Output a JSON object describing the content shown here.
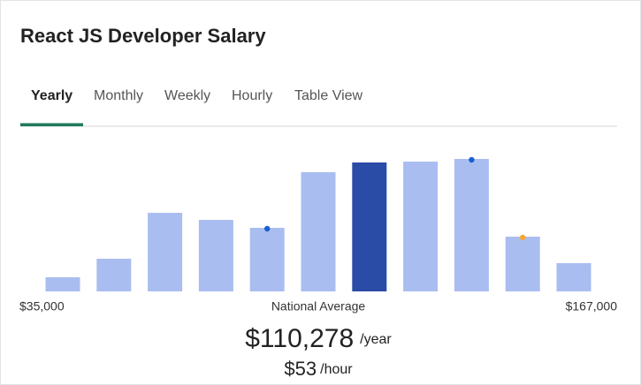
{
  "title": "React JS Developer Salary",
  "tabs": [
    "Yearly",
    "Monthly",
    "Weekly",
    "Hourly",
    "Table View"
  ],
  "active_tab": 0,
  "chart_data": {
    "type": "bar",
    "values": [
      16,
      37,
      89,
      81,
      72,
      135,
      146,
      147,
      150,
      62,
      32
    ],
    "colors": [
      "#aabdf0",
      "#aabdf0",
      "#aabdf0",
      "#aabdf0",
      "#aabdf0",
      "#aabdf0",
      "#2a4ba6",
      "#aabdf0",
      "#aabdf0",
      "#aabdf0",
      "#aabdf0"
    ],
    "ylim": [
      0,
      150
    ],
    "xlim": [
      35000,
      167000
    ],
    "xticks": [
      {
        "value": 35000,
        "label": "$35,000"
      },
      {
        "value": 167000,
        "label": "$167,000"
      }
    ],
    "center_label": "National Average",
    "dots": [
      {
        "index": 4,
        "color": "#1a5fd0"
      },
      {
        "index": 8,
        "color": "#1a5fd0"
      },
      {
        "index": 9,
        "color": "#f4a733"
      }
    ]
  },
  "average": {
    "yearly": "$110,278",
    "yearly_unit": "/year",
    "hourly": "$53",
    "hourly_unit": "/hour"
  }
}
